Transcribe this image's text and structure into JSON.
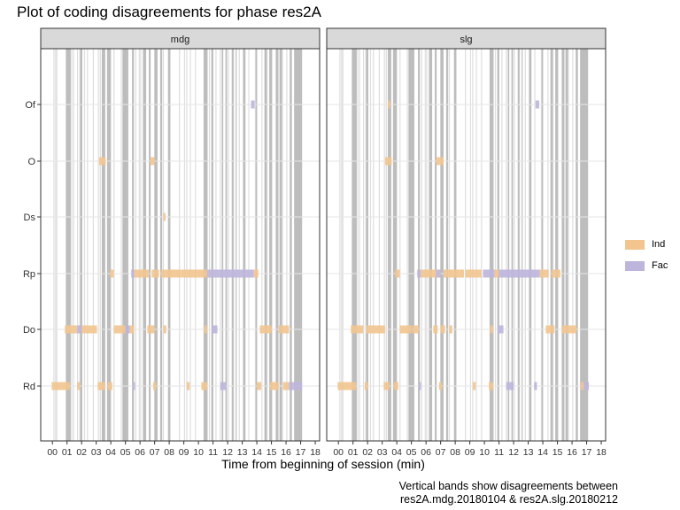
{
  "chart_data": {
    "type": "timeline",
    "title": "Plot of coding disagreements for phase res2A",
    "xlabel": "Time from beginning of session (min)",
    "ylabel": "",
    "caption_lines": [
      "Vertical bands show disagreements between",
      "res2A.mdg.20180104 & res2A.slg.20180212"
    ],
    "xlim": [
      -0.8,
      18.3
    ],
    "x_ticks": [
      "00",
      "01",
      "02",
      "03",
      "04",
      "05",
      "06",
      "07",
      "08",
      "09",
      "10",
      "11",
      "12",
      "13",
      "14",
      "15",
      "16",
      "17",
      "18"
    ],
    "categories": [
      "Of",
      "O",
      "Ds",
      "Rp",
      "Do",
      "Rd"
    ],
    "legend": [
      {
        "name": "Ind",
        "color": "#f2c58f"
      },
      {
        "name": "Fac",
        "color": "#bdb5dc"
      }
    ],
    "background_line_color": "#dedede",
    "band_color": "#bdbdbd",
    "background_lines": [
      0.1,
      0.22,
      0.3,
      1.05,
      1.22,
      1.32,
      1.45,
      1.72,
      1.88,
      2.2,
      2.4,
      2.8,
      3.15,
      3.28,
      3.98,
      4.22,
      4.72,
      5.05,
      5.7,
      5.95,
      6.05,
      6.7,
      7.6,
      7.95,
      8.7,
      9.05,
      9.2,
      9.45,
      9.8,
      10.6,
      10.75,
      11.2,
      11.5,
      12.05,
      12.4,
      12.8,
      13.45,
      13.9,
      14.35,
      14.7,
      15.3,
      15.75,
      16.05
    ],
    "disagreement_bands": [
      [
        0.92,
        1.25
      ],
      [
        1.9,
        2.05
      ],
      [
        3.38,
        3.62
      ],
      [
        3.74,
        4.0
      ],
      [
        4.8,
        5.2
      ],
      [
        5.45,
        5.58
      ],
      [
        6.2,
        6.42
      ],
      [
        6.6,
        6.72
      ],
      [
        6.98,
        7.2
      ],
      [
        7.38,
        7.52
      ],
      [
        7.92,
        8.08
      ],
      [
        10.35,
        10.62
      ],
      [
        10.88,
        11.02
      ],
      [
        11.6,
        11.7
      ],
      [
        11.85,
        11.96
      ],
      [
        12.28,
        12.4
      ],
      [
        12.55,
        12.62
      ],
      [
        13.05,
        13.22
      ],
      [
        13.92,
        14.02
      ],
      [
        14.52,
        14.68
      ],
      [
        14.85,
        15.05
      ],
      [
        15.32,
        15.48
      ],
      [
        15.55,
        15.72
      ],
      [
        16.25,
        16.4
      ],
      [
        16.55,
        17.1
      ]
    ],
    "panels": [
      {
        "strip": "mdg",
        "segments": [
          {
            "y": "Of",
            "x0": 13.6,
            "x1": 13.85,
            "code": "Fac"
          },
          {
            "y": "O",
            "x0": 3.2,
            "x1": 3.65,
            "code": "Ind"
          },
          {
            "y": "O",
            "x0": 6.7,
            "x1": 7.0,
            "code": "Ind"
          },
          {
            "y": "Ds",
            "x0": 7.6,
            "x1": 7.75,
            "code": "Ind"
          },
          {
            "y": "Rp",
            "x0": 3.95,
            "x1": 4.2,
            "code": "Ind"
          },
          {
            "y": "Rp",
            "x0": 5.4,
            "x1": 5.6,
            "code": "Fac"
          },
          {
            "y": "Rp",
            "x0": 5.6,
            "x1": 6.6,
            "code": "Ind"
          },
          {
            "y": "Rp",
            "x0": 6.8,
            "x1": 7.3,
            "code": "Ind"
          },
          {
            "y": "Rp",
            "x0": 7.45,
            "x1": 8.8,
            "code": "Ind"
          },
          {
            "y": "Rp",
            "x0": 8.8,
            "x1": 10.6,
            "code": "Ind"
          },
          {
            "y": "Rp",
            "x0": 10.6,
            "x1": 13.8,
            "code": "Fac"
          },
          {
            "y": "Rp",
            "x0": 13.8,
            "x1": 14.1,
            "code": "Ind"
          },
          {
            "y": "Do",
            "x0": 0.85,
            "x1": 1.7,
            "code": "Ind"
          },
          {
            "y": "Do",
            "x0": 1.7,
            "x1": 2.0,
            "code": "Fac"
          },
          {
            "y": "Do",
            "x0": 2.0,
            "x1": 3.05,
            "code": "Ind"
          },
          {
            "y": "Do",
            "x0": 4.2,
            "x1": 5.0,
            "code": "Ind"
          },
          {
            "y": "Do",
            "x0": 5.0,
            "x1": 5.3,
            "code": "Fac"
          },
          {
            "y": "Do",
            "x0": 5.3,
            "x1": 5.6,
            "code": "Ind"
          },
          {
            "y": "Do",
            "x0": 6.5,
            "x1": 7.0,
            "code": "Ind"
          },
          {
            "y": "Do",
            "x0": 7.6,
            "x1": 7.8,
            "code": "Ind"
          },
          {
            "y": "Do",
            "x0": 10.4,
            "x1": 10.6,
            "code": "Ind"
          },
          {
            "y": "Do",
            "x0": 10.9,
            "x1": 11.3,
            "code": "Fac"
          },
          {
            "y": "Do",
            "x0": 14.2,
            "x1": 15.0,
            "code": "Ind"
          },
          {
            "y": "Do",
            "x0": 15.5,
            "x1": 16.2,
            "code": "Ind"
          },
          {
            "y": "Rd",
            "x0": -0.05,
            "x1": 1.2,
            "code": "Ind"
          },
          {
            "y": "Rd",
            "x0": 1.7,
            "x1": 1.9,
            "code": "Ind"
          },
          {
            "y": "Rd",
            "x0": 3.1,
            "x1": 3.6,
            "code": "Ind"
          },
          {
            "y": "Rd",
            "x0": 3.8,
            "x1": 4.1,
            "code": "Ind"
          },
          {
            "y": "Rd",
            "x0": 5.5,
            "x1": 5.65,
            "code": "Fac"
          },
          {
            "y": "Rd",
            "x0": 6.9,
            "x1": 7.1,
            "code": "Ind"
          },
          {
            "y": "Rd",
            "x0": 9.2,
            "x1": 9.4,
            "code": "Ind"
          },
          {
            "y": "Rd",
            "x0": 10.2,
            "x1": 10.6,
            "code": "Ind"
          },
          {
            "y": "Rd",
            "x0": 11.5,
            "x1": 11.9,
            "code": "Fac"
          },
          {
            "y": "Rd",
            "x0": 14.0,
            "x1": 14.3,
            "code": "Ind"
          },
          {
            "y": "Rd",
            "x0": 14.9,
            "x1": 15.5,
            "code": "Ind"
          },
          {
            "y": "Rd",
            "x0": 15.8,
            "x1": 16.2,
            "code": "Ind"
          },
          {
            "y": "Rd",
            "x0": 16.2,
            "x1": 17.1,
            "code": "Fac"
          }
        ]
      },
      {
        "strip": "slg",
        "segments": [
          {
            "y": "Of",
            "x0": 3.4,
            "x1": 3.55,
            "code": "Ind"
          },
          {
            "y": "Of",
            "x0": 13.5,
            "x1": 13.75,
            "code": "Fac"
          },
          {
            "y": "O",
            "x0": 3.2,
            "x1": 3.65,
            "code": "Ind"
          },
          {
            "y": "O",
            "x0": 6.7,
            "x1": 7.2,
            "code": "Ind"
          },
          {
            "y": "Rp",
            "x0": 3.9,
            "x1": 4.2,
            "code": "Ind"
          },
          {
            "y": "Rp",
            "x0": 5.4,
            "x1": 5.65,
            "code": "Fac"
          },
          {
            "y": "Rp",
            "x0": 5.65,
            "x1": 6.7,
            "code": "Ind"
          },
          {
            "y": "Rp",
            "x0": 6.7,
            "x1": 7.0,
            "code": "Fac"
          },
          {
            "y": "Rp",
            "x0": 7.2,
            "x1": 8.6,
            "code": "Ind"
          },
          {
            "y": "Rp",
            "x0": 8.7,
            "x1": 9.8,
            "code": "Ind"
          },
          {
            "y": "Rp",
            "x0": 9.9,
            "x1": 10.7,
            "code": "Fac"
          },
          {
            "y": "Rp",
            "x0": 10.7,
            "x1": 11.0,
            "code": "Ind"
          },
          {
            "y": "Rp",
            "x0": 11.0,
            "x1": 13.8,
            "code": "Fac"
          },
          {
            "y": "Rp",
            "x0": 13.8,
            "x1": 14.4,
            "code": "Ind"
          },
          {
            "y": "Rp",
            "x0": 14.6,
            "x1": 15.2,
            "code": "Ind"
          },
          {
            "y": "Do",
            "x0": 0.85,
            "x1": 1.7,
            "code": "Ind"
          },
          {
            "y": "Do",
            "x0": 1.9,
            "x1": 3.2,
            "code": "Ind"
          },
          {
            "y": "Do",
            "x0": 4.2,
            "x1": 5.0,
            "code": "Ind"
          },
          {
            "y": "Do",
            "x0": 5.05,
            "x1": 5.5,
            "code": "Ind"
          },
          {
            "y": "Do",
            "x0": 6.5,
            "x1": 6.8,
            "code": "Ind"
          },
          {
            "y": "Do",
            "x0": 7.0,
            "x1": 7.3,
            "code": "Ind"
          },
          {
            "y": "Do",
            "x0": 7.6,
            "x1": 7.8,
            "code": "Ind"
          },
          {
            "y": "Do",
            "x0": 10.4,
            "x1": 10.6,
            "code": "Ind"
          },
          {
            "y": "Do",
            "x0": 10.9,
            "x1": 11.3,
            "code": "Fac"
          },
          {
            "y": "Do",
            "x0": 14.2,
            "x1": 14.8,
            "code": "Ind"
          },
          {
            "y": "Do",
            "x0": 15.3,
            "x1": 16.3,
            "code": "Ind"
          },
          {
            "y": "Rd",
            "x0": -0.05,
            "x1": 1.2,
            "code": "Ind"
          },
          {
            "y": "Rd",
            "x0": 1.8,
            "x1": 2.0,
            "code": "Ind"
          },
          {
            "y": "Rd",
            "x0": 3.1,
            "x1": 3.5,
            "code": "Ind"
          },
          {
            "y": "Rd",
            "x0": 3.8,
            "x1": 4.1,
            "code": "Ind"
          },
          {
            "y": "Rd",
            "x0": 5.5,
            "x1": 5.65,
            "code": "Fac"
          },
          {
            "y": "Rd",
            "x0": 6.9,
            "x1": 7.1,
            "code": "Ind"
          },
          {
            "y": "Rd",
            "x0": 9.2,
            "x1": 9.4,
            "code": "Ind"
          },
          {
            "y": "Rd",
            "x0": 10.3,
            "x1": 10.6,
            "code": "Ind"
          },
          {
            "y": "Rd",
            "x0": 11.5,
            "x1": 12.0,
            "code": "Fac"
          },
          {
            "y": "Rd",
            "x0": 13.4,
            "x1": 13.6,
            "code": "Fac"
          },
          {
            "y": "Rd",
            "x0": 16.6,
            "x1": 16.8,
            "code": "Ind"
          },
          {
            "y": "Rd",
            "x0": 16.8,
            "x1": 17.15,
            "code": "Fac"
          }
        ]
      }
    ]
  }
}
